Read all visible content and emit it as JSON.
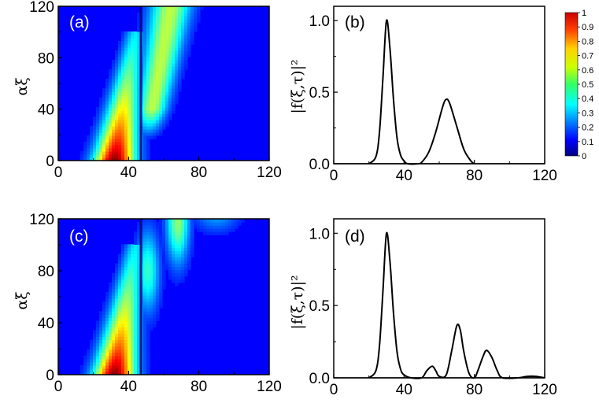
{
  "chart_data": [
    {
      "panel_label": "(a)",
      "type": "heatmap",
      "xlim": [
        0,
        120
      ],
      "ylim": [
        0,
        120
      ],
      "xticks": [
        "0",
        "40",
        "80",
        "120"
      ],
      "yticks": [
        "0",
        "40",
        "80",
        "120"
      ],
      "ylabel": "αξ",
      "features": [
        {
          "name": "main beam",
          "x0": 32,
          "x1": 44,
          "y_end": 100,
          "x_width": 8,
          "peak": 1.0,
          "decay": 75
        },
        {
          "name": "reflected beam",
          "x0": 50,
          "x1": 64,
          "y_start": 15,
          "x_width": 5,
          "peak": 0.5,
          "decay": 0
        }
      ],
      "dark_line_x": 47
    },
    {
      "panel_label": "(b)",
      "type": "line",
      "xlim": [
        0,
        120
      ],
      "ylim": [
        0,
        1.1
      ],
      "xticks": [
        "0",
        "40",
        "80",
        "120"
      ],
      "yticks": [
        "0.0",
        "0.5",
        "1.0"
      ],
      "ylabel": "|f(ξ,τ)|²",
      "series": [
        {
          "points": [
            [
              20,
              0.0
            ],
            [
              24,
              0.05
            ],
            [
              26,
              0.22
            ],
            [
              28,
              0.6
            ],
            [
              30,
              1.0
            ],
            [
              32,
              0.8
            ],
            [
              34,
              0.45
            ],
            [
              36,
              0.18
            ],
            [
              38,
              0.06
            ],
            [
              40,
              0.02
            ],
            [
              42,
              0.0
            ],
            [
              48,
              0.0
            ],
            [
              50,
              0.01
            ],
            [
              54,
              0.08
            ],
            [
              58,
              0.22
            ],
            [
              62,
              0.4
            ],
            [
              64,
              0.45
            ],
            [
              66,
              0.42
            ],
            [
              70,
              0.26
            ],
            [
              74,
              0.1
            ],
            [
              78,
              0.02
            ],
            [
              80,
              0.0
            ]
          ]
        }
      ]
    },
    {
      "panel_label": "(c)",
      "type": "heatmap",
      "xlim": [
        0,
        120
      ],
      "ylim": [
        0,
        120
      ],
      "xticks": [
        "0",
        "40",
        "80",
        "120"
      ],
      "yticks": [
        "0",
        "40",
        "80",
        "120"
      ],
      "ylabel": "αξ",
      "features": [
        {
          "name": "main beam",
          "x0": 32,
          "x1": 44,
          "y_end": 100,
          "x_width": 8,
          "peak": 1.0,
          "decay": 75
        },
        {
          "name": "blob 1",
          "x": 51,
          "y": 80,
          "peak": 0.35
        },
        {
          "name": "blob 2",
          "x": 68,
          "y": 118,
          "peak": 0.45
        },
        {
          "name": "blob 3",
          "x": 90,
          "y": 125,
          "peak": 0.2
        }
      ],
      "dark_line_x": 47
    },
    {
      "panel_label": "(d)",
      "type": "line",
      "xlim": [
        0,
        120
      ],
      "ylim": [
        0,
        1.1
      ],
      "xticks": [
        "0",
        "40",
        "80",
        "120"
      ],
      "yticks": [
        "0.0",
        "0.5",
        "1.0"
      ],
      "ylabel": "|f(ξ,τ)|²",
      "series": [
        {
          "points": [
            [
              20,
              0.0
            ],
            [
              24,
              0.05
            ],
            [
              26,
              0.22
            ],
            [
              28,
              0.6
            ],
            [
              30,
              1.0
            ],
            [
              32,
              0.8
            ],
            [
              34,
              0.45
            ],
            [
              36,
              0.18
            ],
            [
              38,
              0.06
            ],
            [
              40,
              0.02
            ],
            [
              44,
              0.0
            ],
            [
              50,
              0.0
            ],
            [
              53,
              0.05
            ],
            [
              56,
              0.08
            ],
            [
              58,
              0.05
            ],
            [
              60,
              0.01
            ],
            [
              64,
              0.02
            ],
            [
              67,
              0.18
            ],
            [
              70,
              0.36
            ],
            [
              72,
              0.33
            ],
            [
              74,
              0.18
            ],
            [
              77,
              0.03
            ],
            [
              80,
              0.0
            ],
            [
              82,
              0.05
            ],
            [
              85,
              0.15
            ],
            [
              87,
              0.19
            ],
            [
              90,
              0.14
            ],
            [
              93,
              0.05
            ],
            [
              96,
              0.0
            ],
            [
              105,
              0.0
            ],
            [
              110,
              0.01
            ],
            [
              115,
              0.01
            ],
            [
              120,
              0.0
            ]
          ]
        }
      ]
    }
  ],
  "colorbar": {
    "range": [
      0,
      1
    ],
    "ticks": [
      "1",
      "0.9",
      "0.8",
      "0.7",
      "0.6",
      "0.5",
      "0.4",
      "0.3",
      "0.2",
      "0.1",
      "0"
    ],
    "colormap": "jet"
  },
  "colors": {
    "jet_low": "#0000ff",
    "jet_high": "#ff0000",
    "line": "#000000"
  }
}
